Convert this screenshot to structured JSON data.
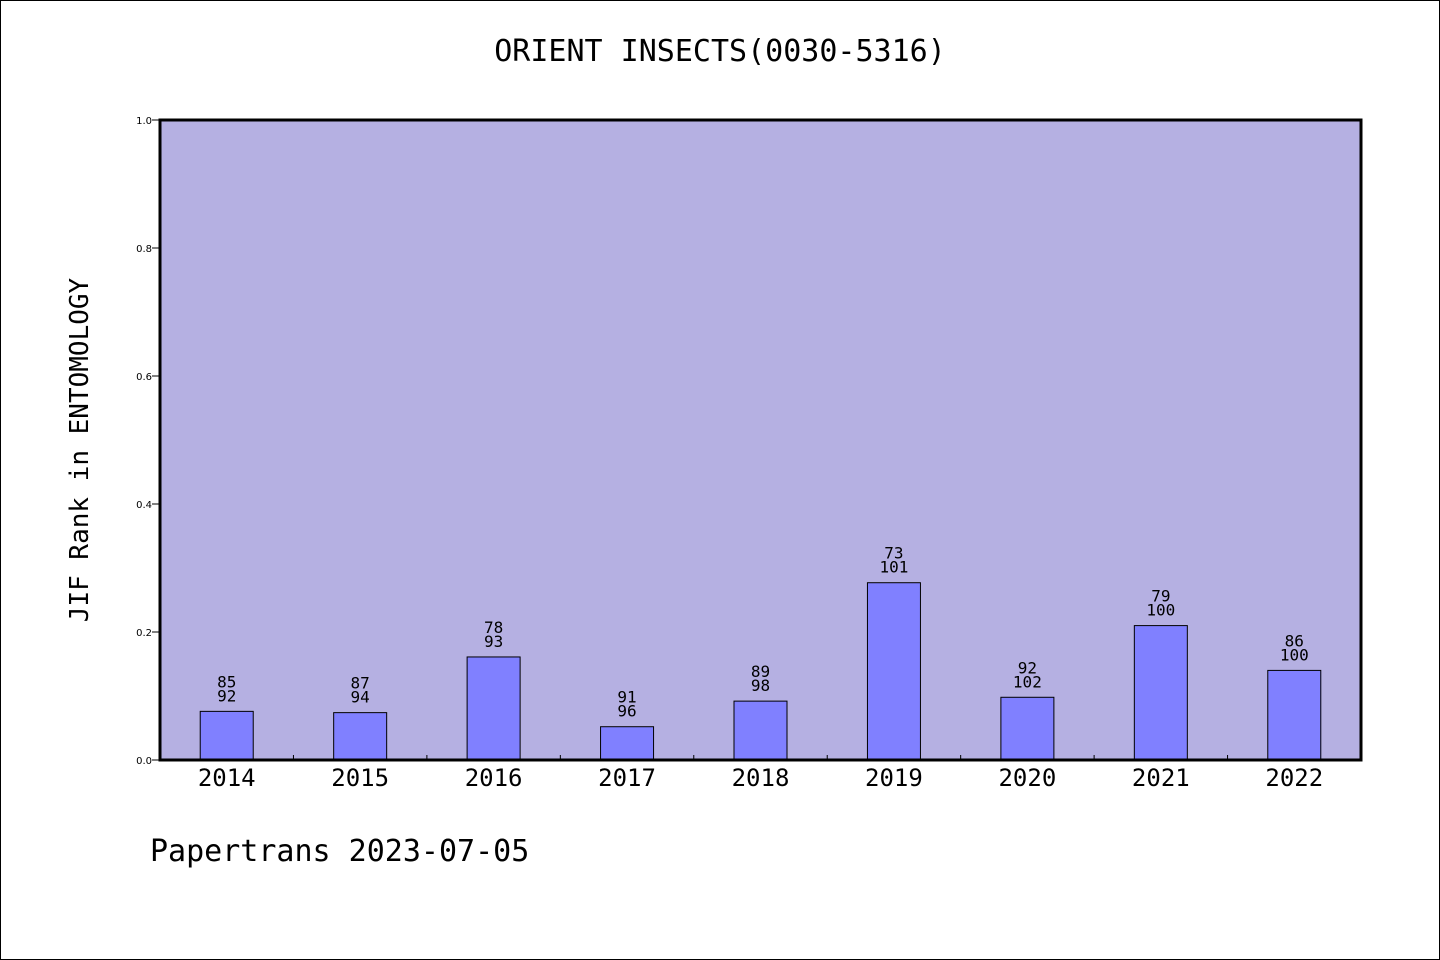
{
  "chart_data": {
    "type": "bar",
    "title": "ORIENT INSECTS(0030-5316)",
    "xlabel": "",
    "ylabel": "JIF Rank in ENTOMOLOGY",
    "categories": [
      "2014",
      "2015",
      "2016",
      "2017",
      "2018",
      "2019",
      "2020",
      "2021",
      "2022"
    ],
    "values": [
      0.076,
      0.074,
      0.161,
      0.052,
      0.092,
      0.277,
      0.098,
      0.21,
      0.14
    ],
    "label_top": [
      "85",
      "87",
      "78",
      "91",
      "89",
      "73",
      "92",
      "79",
      "86"
    ],
    "label_bottom": [
      "92",
      "94",
      "93",
      "96",
      "98",
      "101",
      "102",
      "100",
      "100"
    ],
    "ylim": [
      0,
      1.0
    ],
    "yticks": [
      "0.0",
      "0.2",
      "0.4",
      "0.6",
      "0.8",
      "1.0"
    ],
    "grid": false,
    "colors": {
      "plot_background": "#b5b0e2",
      "bar_fill": "#8080ff",
      "bar_stroke": "#000000"
    }
  },
  "footer": {
    "text": "Papertrans 2023-07-05"
  }
}
